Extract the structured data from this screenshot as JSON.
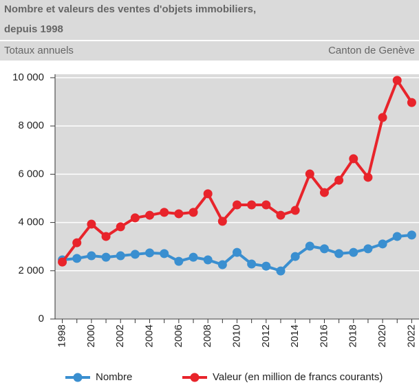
{
  "chart_data": {
    "type": "line",
    "title": [
      "Nombre et valeurs des ventes d'objets immobiliers,",
      "depuis 1998"
    ],
    "subtitle": "Totaux annuels",
    "annotation": "Canton de Genève",
    "categories": [
      "1998",
      null,
      "2000",
      null,
      "2002",
      null,
      "2004",
      null,
      "2006",
      null,
      "2008",
      null,
      "2010",
      null,
      "2012",
      null,
      "2014",
      null,
      "2016",
      null,
      "2018",
      null,
      "2020",
      null,
      "2022"
    ],
    "series": [
      {
        "name": "Nombre",
        "color": "#3a8fd0",
        "values": [
          2450,
          2510,
          2620,
          2560,
          2620,
          2680,
          2740,
          2710,
          2390,
          2560,
          2450,
          2250,
          2760,
          2280,
          2190,
          1990,
          2590,
          3020,
          2910,
          2710,
          2760,
          2910,
          3110,
          3420,
          3480
        ]
      },
      {
        "name": "Valeur (en million de francs courants)",
        "color": "#e8242b",
        "values": [
          2360,
          3160,
          3930,
          3420,
          3820,
          4190,
          4300,
          4420,
          4360,
          4420,
          5190,
          4050,
          4730,
          4730,
          4730,
          4300,
          4500,
          6010,
          5240,
          5750,
          6640,
          5870,
          8350,
          9890,
          8970
        ]
      }
    ],
    "ylim": [
      0,
      10000
    ],
    "yticks": [
      0,
      {
        "value": 2000,
        "label": "2 000"
      },
      {
        "value": 4000,
        "label": "4 000"
      },
      {
        "value": 6000,
        "label": "6 000"
      },
      {
        "value": 8000,
        "label": "8 000"
      },
      {
        "value": 10000,
        "label": "10 000"
      }
    ],
    "grid": true
  }
}
